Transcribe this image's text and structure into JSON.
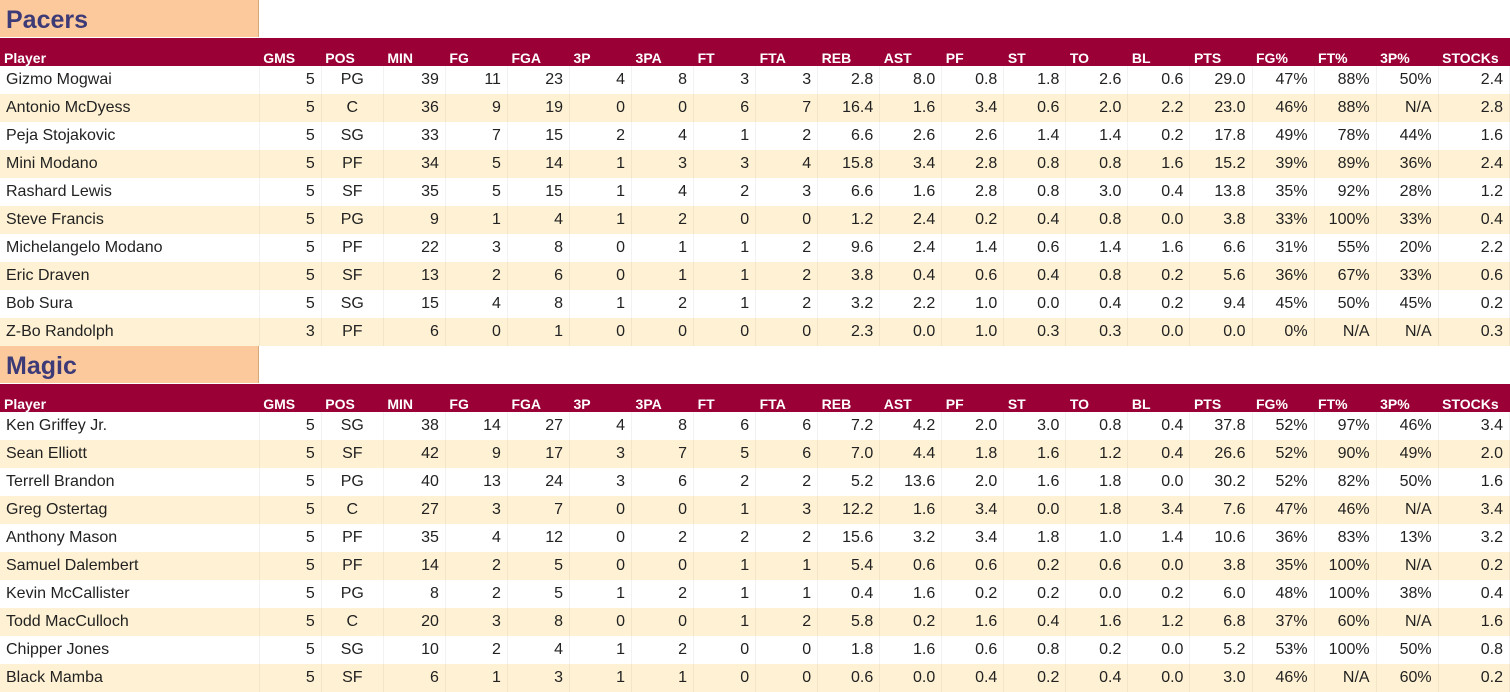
{
  "columns": [
    "Player",
    "GMS",
    "POS",
    "MIN",
    "FG",
    "FGA",
    "3P",
    "3PA",
    "FT",
    "FTA",
    "REB",
    "AST",
    "PF",
    "ST",
    "TO",
    "BL",
    "PTS",
    "FG%",
    "FT%",
    "3P%",
    "STOCKs"
  ],
  "teams": [
    {
      "name": "Pacers",
      "rows": [
        [
          "Gizmo Mogwai",
          "5",
          "PG",
          "39",
          "11",
          "23",
          "4",
          "8",
          "3",
          "3",
          "2.8",
          "8.0",
          "0.8",
          "1.8",
          "2.6",
          "0.6",
          "29.0",
          "47%",
          "88%",
          "50%",
          "2.4"
        ],
        [
          "Antonio McDyess",
          "5",
          "C",
          "36",
          "9",
          "19",
          "0",
          "0",
          "6",
          "7",
          "16.4",
          "1.6",
          "3.4",
          "0.6",
          "2.0",
          "2.2",
          "23.0",
          "46%",
          "88%",
          "N/A",
          "2.8"
        ],
        [
          "Peja Stojakovic",
          "5",
          "SG",
          "33",
          "7",
          "15",
          "2",
          "4",
          "1",
          "2",
          "6.6",
          "2.6",
          "2.6",
          "1.4",
          "1.4",
          "0.2",
          "17.8",
          "49%",
          "78%",
          "44%",
          "1.6"
        ],
        [
          "Mini Modano",
          "5",
          "PF",
          "34",
          "5",
          "14",
          "1",
          "3",
          "3",
          "4",
          "15.8",
          "3.4",
          "2.8",
          "0.8",
          "0.8",
          "1.6",
          "15.2",
          "39%",
          "89%",
          "36%",
          "2.4"
        ],
        [
          "Rashard Lewis",
          "5",
          "SF",
          "35",
          "5",
          "15",
          "1",
          "4",
          "2",
          "3",
          "6.6",
          "1.6",
          "2.8",
          "0.8",
          "3.0",
          "0.4",
          "13.8",
          "35%",
          "92%",
          "28%",
          "1.2"
        ],
        [
          "Steve Francis",
          "5",
          "PG",
          "9",
          "1",
          "4",
          "1",
          "2",
          "0",
          "0",
          "1.2",
          "2.4",
          "0.2",
          "0.4",
          "0.8",
          "0.0",
          "3.8",
          "33%",
          "100%",
          "33%",
          "0.4"
        ],
        [
          "Michelangelo Modano",
          "5",
          "PF",
          "22",
          "3",
          "8",
          "0",
          "1",
          "1",
          "2",
          "9.6",
          "2.4",
          "1.4",
          "0.6",
          "1.4",
          "1.6",
          "6.6",
          "31%",
          "55%",
          "20%",
          "2.2"
        ],
        [
          "Eric Draven",
          "5",
          "SF",
          "13",
          "2",
          "6",
          "0",
          "1",
          "1",
          "2",
          "3.8",
          "0.4",
          "0.6",
          "0.4",
          "0.8",
          "0.2",
          "5.6",
          "36%",
          "67%",
          "33%",
          "0.6"
        ],
        [
          "Bob Sura",
          "5",
          "SG",
          "15",
          "4",
          "8",
          "1",
          "2",
          "1",
          "2",
          "3.2",
          "2.2",
          "1.0",
          "0.0",
          "0.4",
          "0.2",
          "9.4",
          "45%",
          "50%",
          "45%",
          "0.2"
        ],
        [
          "Z-Bo Randolph",
          "3",
          "PF",
          "6",
          "0",
          "1",
          "0",
          "0",
          "0",
          "0",
          "2.3",
          "0.0",
          "1.0",
          "0.3",
          "0.3",
          "0.0",
          "0.0",
          "0%",
          "N/A",
          "N/A",
          "0.3"
        ]
      ]
    },
    {
      "name": "Magic",
      "rows": [
        [
          "Ken Griffey Jr.",
          "5",
          "SG",
          "38",
          "14",
          "27",
          "4",
          "8",
          "6",
          "6",
          "7.2",
          "4.2",
          "2.0",
          "3.0",
          "0.8",
          "0.4",
          "37.8",
          "52%",
          "97%",
          "46%",
          "3.4"
        ],
        [
          "Sean Elliott",
          "5",
          "SF",
          "42",
          "9",
          "17",
          "3",
          "7",
          "5",
          "6",
          "7.0",
          "4.4",
          "1.8",
          "1.6",
          "1.2",
          "0.4",
          "26.6",
          "52%",
          "90%",
          "49%",
          "2.0"
        ],
        [
          "Terrell Brandon",
          "5",
          "PG",
          "40",
          "13",
          "24",
          "3",
          "6",
          "2",
          "2",
          "5.2",
          "13.6",
          "2.0",
          "1.6",
          "1.8",
          "0.0",
          "30.2",
          "52%",
          "82%",
          "50%",
          "1.6"
        ],
        [
          "Greg Ostertag",
          "5",
          "C",
          "27",
          "3",
          "7",
          "0",
          "0",
          "1",
          "3",
          "12.2",
          "1.6",
          "3.4",
          "0.0",
          "1.8",
          "3.4",
          "7.6",
          "47%",
          "46%",
          "N/A",
          "3.4"
        ],
        [
          "Anthony Mason",
          "5",
          "PF",
          "35",
          "4",
          "12",
          "0",
          "2",
          "2",
          "2",
          "15.6",
          "3.2",
          "3.4",
          "1.8",
          "1.0",
          "1.4",
          "10.6",
          "36%",
          "83%",
          "13%",
          "3.2"
        ],
        [
          "Samuel Dalembert",
          "5",
          "PF",
          "14",
          "2",
          "5",
          "0",
          "0",
          "1",
          "1",
          "5.4",
          "0.6",
          "0.6",
          "0.2",
          "0.6",
          "0.0",
          "3.8",
          "35%",
          "100%",
          "N/A",
          "0.2"
        ],
        [
          "Kevin McCallister",
          "5",
          "PG",
          "8",
          "2",
          "5",
          "1",
          "2",
          "1",
          "1",
          "0.4",
          "1.6",
          "0.2",
          "0.2",
          "0.0",
          "0.2",
          "6.0",
          "48%",
          "100%",
          "38%",
          "0.4"
        ],
        [
          "Todd MacCulloch",
          "5",
          "C",
          "20",
          "3",
          "8",
          "0",
          "0",
          "1",
          "2",
          "5.8",
          "0.2",
          "1.6",
          "0.4",
          "1.6",
          "1.2",
          "6.8",
          "37%",
          "60%",
          "N/A",
          "1.6"
        ],
        [
          "Chipper Jones",
          "5",
          "SG",
          "10",
          "2",
          "4",
          "1",
          "2",
          "0",
          "0",
          "1.8",
          "1.6",
          "0.6",
          "0.8",
          "0.2",
          "0.0",
          "5.2",
          "53%",
          "100%",
          "50%",
          "0.8"
        ],
        [
          "Black Mamba",
          "5",
          "SF",
          "6",
          "1",
          "3",
          "1",
          "1",
          "0",
          "0",
          "0.6",
          "0.0",
          "0.4",
          "0.2",
          "0.4",
          "0.0",
          "3.0",
          "46%",
          "N/A",
          "60%",
          "0.2"
        ]
      ]
    }
  ]
}
